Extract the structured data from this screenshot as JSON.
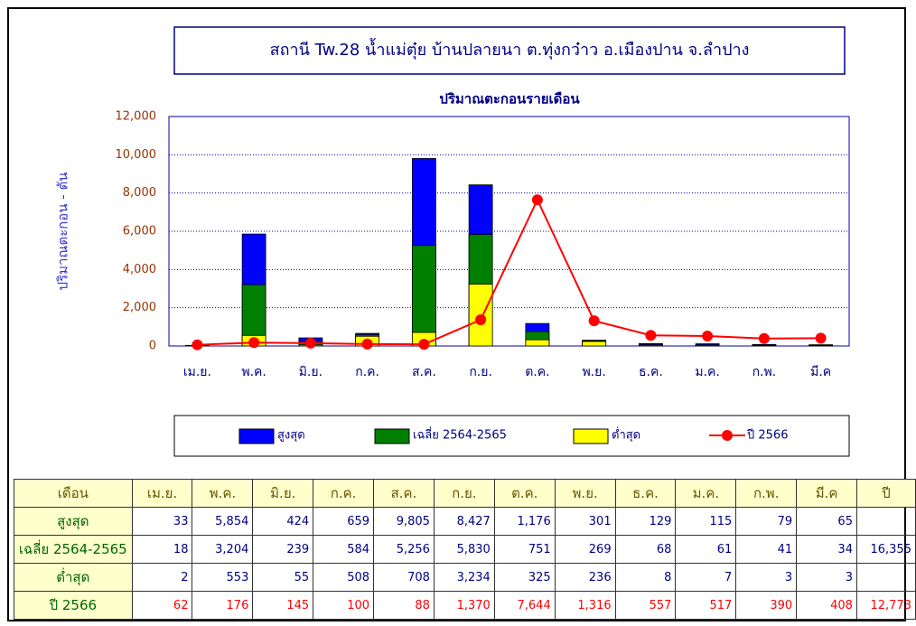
{
  "chart_data": {
    "type": "bar",
    "title": "สถานี Tw.28 น้ำแม่ตุ๋ย บ้านปลายนา ต.ทุ่งกว๋าว อ.เมืองปาน จ.ลำปาง",
    "subtitle": "ปริมาณตะกอนรายเดือน",
    "y_label": "ปริมาณตะกอน - ตัน",
    "categories": [
      "เม.ย.",
      "พ.ค.",
      "มิ.ย.",
      "ก.ค.",
      "ส.ค.",
      "ก.ย.",
      "ต.ค.",
      "พ.ย.",
      "ธ.ค.",
      "ม.ค.",
      "ก.พ.",
      "มี.ค"
    ],
    "ylim": [
      0,
      12000
    ],
    "yticks": [
      0,
      {
        "value": 2000,
        "label": "2,000"
      },
      {
        "value": 4000,
        "label": "4,000"
      },
      {
        "value": 6000,
        "label": "6,000"
      },
      {
        "value": 8000,
        "label": "8,000"
      },
      {
        "value": 10000,
        "label": "10,000"
      },
      {
        "value": 12000,
        "label": "12,000"
      }
    ],
    "grid": true,
    "series": [
      {
        "name": "สูงสุด",
        "type": "bar",
        "color": "#0000ff",
        "values": [
          33,
          5854,
          424,
          659,
          9805,
          8427,
          1176,
          301,
          129,
          115,
          79,
          65
        ],
        "value_labels": [
          "33",
          "5,854",
          "424",
          "659",
          "9,805",
          "8,427",
          "1,176",
          "301",
          "129",
          "115",
          "79",
          "65"
        ]
      },
      {
        "name": "เฉลี่ย 2564-2565",
        "type": "bar",
        "color": "#008000",
        "values": [
          18,
          3204,
          239,
          584,
          5256,
          5830,
          751,
          269,
          68,
          61,
          41,
          34
        ],
        "value_labels": [
          "18",
          "3,204",
          "239",
          "584",
          "5,256",
          "5,830",
          "751",
          "269",
          "68",
          "61",
          "41",
          "34"
        ],
        "total_label": "16,355"
      },
      {
        "name": "ต่ำสุด",
        "type": "bar",
        "color": "#ffff00",
        "values": [
          2,
          553,
          55,
          508,
          708,
          3234,
          325,
          236,
          8,
          7,
          3,
          3
        ],
        "value_labels": [
          "2",
          "553",
          "55",
          "508",
          "708",
          "3,234",
          "325",
          "236",
          "8",
          "7",
          "3",
          "3"
        ]
      },
      {
        "name": "ปี 2566",
        "type": "line",
        "color": "#ff0000",
        "values": [
          62,
          176,
          145,
          100,
          88,
          1370,
          7644,
          1316,
          557,
          517,
          390,
          408
        ],
        "value_labels": [
          "62",
          "176",
          "145",
          "100",
          "88",
          "1,370",
          "7,644",
          "1,316",
          "557",
          "517",
          "390",
          "408"
        ],
        "total_label": "12,773"
      }
    ]
  },
  "table": {
    "header_first": "เดือน",
    "header_last": "ปี"
  }
}
